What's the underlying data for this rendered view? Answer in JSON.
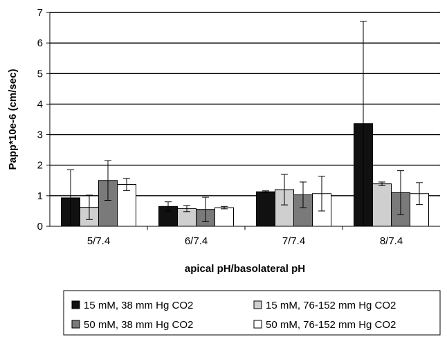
{
  "chart_data": {
    "type": "bar",
    "title": "",
    "xlabel": "apical pH/basolateral pH",
    "ylabel": "Papp*10e-6 (cm/sec)",
    "ylim": [
      0,
      7
    ],
    "yticks": [
      0,
      1,
      2,
      3,
      4,
      5,
      6,
      7
    ],
    "grid": true,
    "legend_position": "bottom",
    "categories": [
      "5/7.4",
      "6/7.4",
      "7/7.4",
      "8/7.4"
    ],
    "series": [
      {
        "name": "15 mM, 38 mm Hg CO2",
        "color": "#111111",
        "values": [
          0.93,
          0.65,
          1.13,
          3.36
        ],
        "errors": [
          0.92,
          0.15,
          0.03,
          3.35
        ]
      },
      {
        "name": "15 mM, 76-152 mm Hg CO2",
        "color": "#cfcfcf",
        "values": [
          0.62,
          0.58,
          1.2,
          1.39
        ],
        "errors": [
          0.4,
          0.1,
          0.5,
          0.06
        ]
      },
      {
        "name": "50 mM, 38 mm Hg CO2",
        "color": "#7a7a7a",
        "values": [
          1.5,
          0.55,
          1.03,
          1.1
        ],
        "errors": [
          0.65,
          0.4,
          0.42,
          0.72
        ]
      },
      {
        "name": "50 mM, 76-152 mm Hg CO2",
        "color": "#ffffff",
        "values": [
          1.37,
          0.61,
          1.07,
          1.07
        ],
        "errors": [
          0.2,
          0.04,
          0.57,
          0.36
        ]
      }
    ]
  }
}
